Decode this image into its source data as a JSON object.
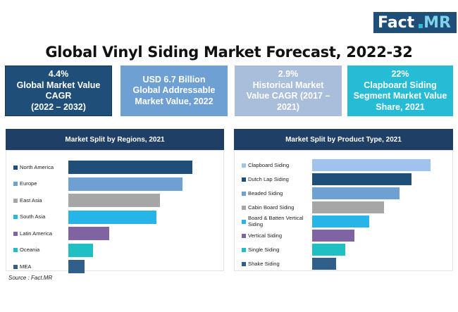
{
  "brand": {
    "fact": "Fact",
    "mr": "MR"
  },
  "title": "Global Vinyl Siding Market Forecast, 2022-32",
  "kpis": [
    {
      "lines": [
        "4.4%",
        "Global Market Value",
        "CAGR",
        "(2022 – 2032)"
      ]
    },
    {
      "lines": [
        "USD 6.7 Billion",
        "Global Addressable",
        "Market Value, 2022"
      ]
    },
    {
      "lines": [
        "2.9%",
        "Historical Market",
        "Value CAGR (2017 –",
        "2021)"
      ]
    },
    {
      "lines": [
        "22%",
        "Clapboard Siding",
        "Segment Market Value",
        "Share, 2021"
      ]
    }
  ],
  "source": "Source : Fact.MR",
  "colors": {
    "navy": "#1f4e79",
    "header": "#1f3f66"
  },
  "chart_data": [
    {
      "type": "bar",
      "orientation": "horizontal",
      "title": "Market Split by Regions, 2021",
      "categories": [
        "North America",
        "Europe",
        "East Asia",
        "South Asia",
        "Latin America",
        "Oceania",
        "MEA"
      ],
      "values": [
        100,
        92,
        74,
        71,
        33,
        20,
        13
      ],
      "colors": [
        "#1f4e79",
        "#6fa0d4",
        "#a6a6a6",
        "#27b5e8",
        "#8064a2",
        "#1fbfc4",
        "#2f5f8a"
      ],
      "xlim": [
        0,
        100
      ],
      "grid": false
    },
    {
      "type": "bar",
      "orientation": "horizontal",
      "title": "Market Split by Product Type, 2021",
      "categories": [
        "Clapboard Siding",
        "Dutch Lap Siding",
        "Beaded Siding",
        "Cabin Board Siding",
        "Board & Batten Vertical Siding",
        "Vertical Siding",
        "Single Siding",
        "Shake Siding"
      ],
      "values": [
        100,
        84,
        74,
        61,
        48,
        36,
        28,
        20
      ],
      "colors": [
        "#9fc3ec",
        "#1f4e79",
        "#6fa0d4",
        "#a6a6a6",
        "#27b5e8",
        "#8064a2",
        "#1fbfc4",
        "#2f5f8a"
      ],
      "xlim": [
        0,
        100
      ],
      "grid": false
    }
  ]
}
